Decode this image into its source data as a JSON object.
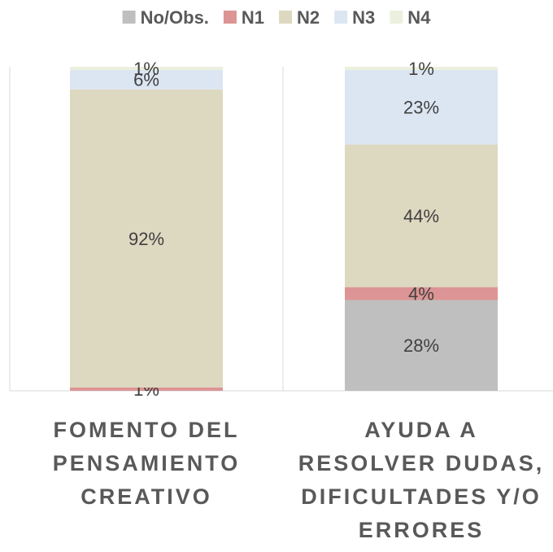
{
  "chart_data": {
    "type": "stacked_bar",
    "categories": [
      "FOMENTO DEL\nPENSAMIENTO\nCREATIVO",
      "AYUDA A\nRESOLVER DUDAS,\nDIFICULTADES Y/O\nERRORES"
    ],
    "series": [
      {
        "name": "No/Obs.",
        "color": "#bfbfbf",
        "values": [
          null,
          28
        ],
        "value_labels": [
          null,
          "28%"
        ]
      },
      {
        "name": "N1",
        "color": "#dd9494",
        "values": [
          1,
          4
        ],
        "value_labels": [
          "1%",
          "4%"
        ]
      },
      {
        "name": "N2",
        "color": "#ddd8c0",
        "values": [
          92,
          44
        ],
        "value_labels": [
          "92%",
          "44%"
        ]
      },
      {
        "name": "N3",
        "color": "#dce6f2",
        "values": [
          6,
          23
        ],
        "value_labels": [
          "6%",
          "23%"
        ]
      },
      {
        "name": "N4",
        "color": "#ebf1de",
        "values": [
          1,
          1
        ],
        "value_labels": [
          "1%",
          "1%"
        ]
      }
    ],
    "ylim": [
      0,
      100
    ],
    "legend": "top"
  }
}
